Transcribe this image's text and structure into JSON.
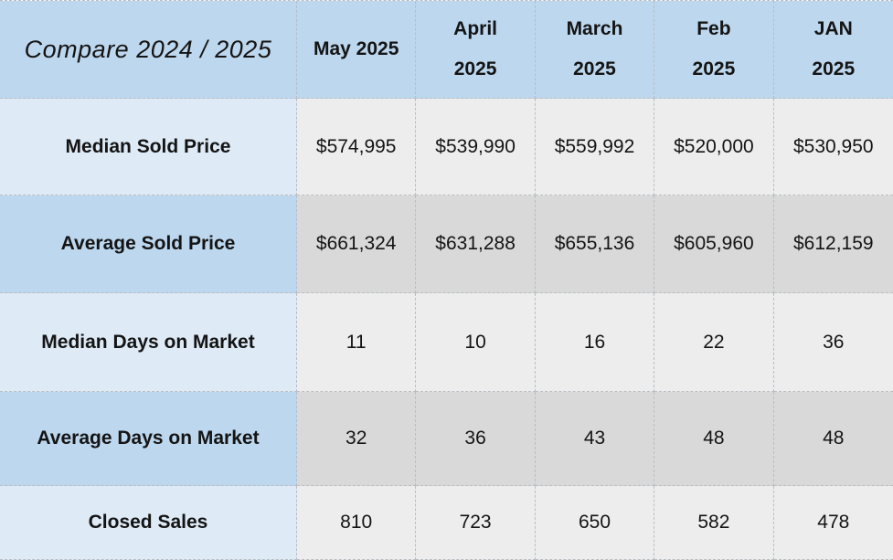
{
  "title": "Compare 2024 / 2025",
  "columns": [
    "May 2025",
    "April\n2025",
    "March\n2025",
    "Feb\n2025",
    "JAN\n2025"
  ],
  "rows": [
    {
      "label": "Median Sold Price",
      "values": [
        "$574,995",
        "$539,990",
        "$559,992",
        "$520,000",
        "$530,950"
      ]
    },
    {
      "label": "Average Sold Price",
      "values": [
        "$661,324",
        "$631,288",
        "$655,136",
        "$605,960",
        "$612,159"
      ]
    },
    {
      "label": "Median Days on Market",
      "values": [
        "11",
        "10",
        "16",
        "22",
        "36"
      ]
    },
    {
      "label": "Average Days on Market",
      "values": [
        "32",
        "36",
        "43",
        "48",
        "48"
      ]
    },
    {
      "label": "Closed Sales",
      "values": [
        "810",
        "723",
        "650",
        "582",
        "478"
      ]
    }
  ],
  "colors": {
    "header-blue": "#bdd7ee",
    "light-blue": "#deeaf6",
    "light-gray": "#ededed",
    "med-gray": "#d8d9d8",
    "border": "#b9bec3",
    "text": "#141414"
  },
  "chart_data": {
    "type": "table",
    "title": "Compare 2024 / 2025",
    "columns": [
      "May 2025",
      "April 2025",
      "March 2025",
      "Feb 2025",
      "JAN 2025"
    ],
    "rows": [
      {
        "metric": "Median Sold Price",
        "values": [
          574995,
          539990,
          559992,
          520000,
          530950
        ]
      },
      {
        "metric": "Average Sold Price",
        "values": [
          661324,
          631288,
          655136,
          605960,
          612159
        ]
      },
      {
        "metric": "Median Days on Market",
        "values": [
          11,
          10,
          16,
          22,
          36
        ]
      },
      {
        "metric": "Average Days on Market",
        "values": [
          32,
          36,
          43,
          48,
          48
        ]
      },
      {
        "metric": "Closed Sales",
        "values": [
          810,
          723,
          650,
          582,
          478
        ]
      }
    ]
  }
}
